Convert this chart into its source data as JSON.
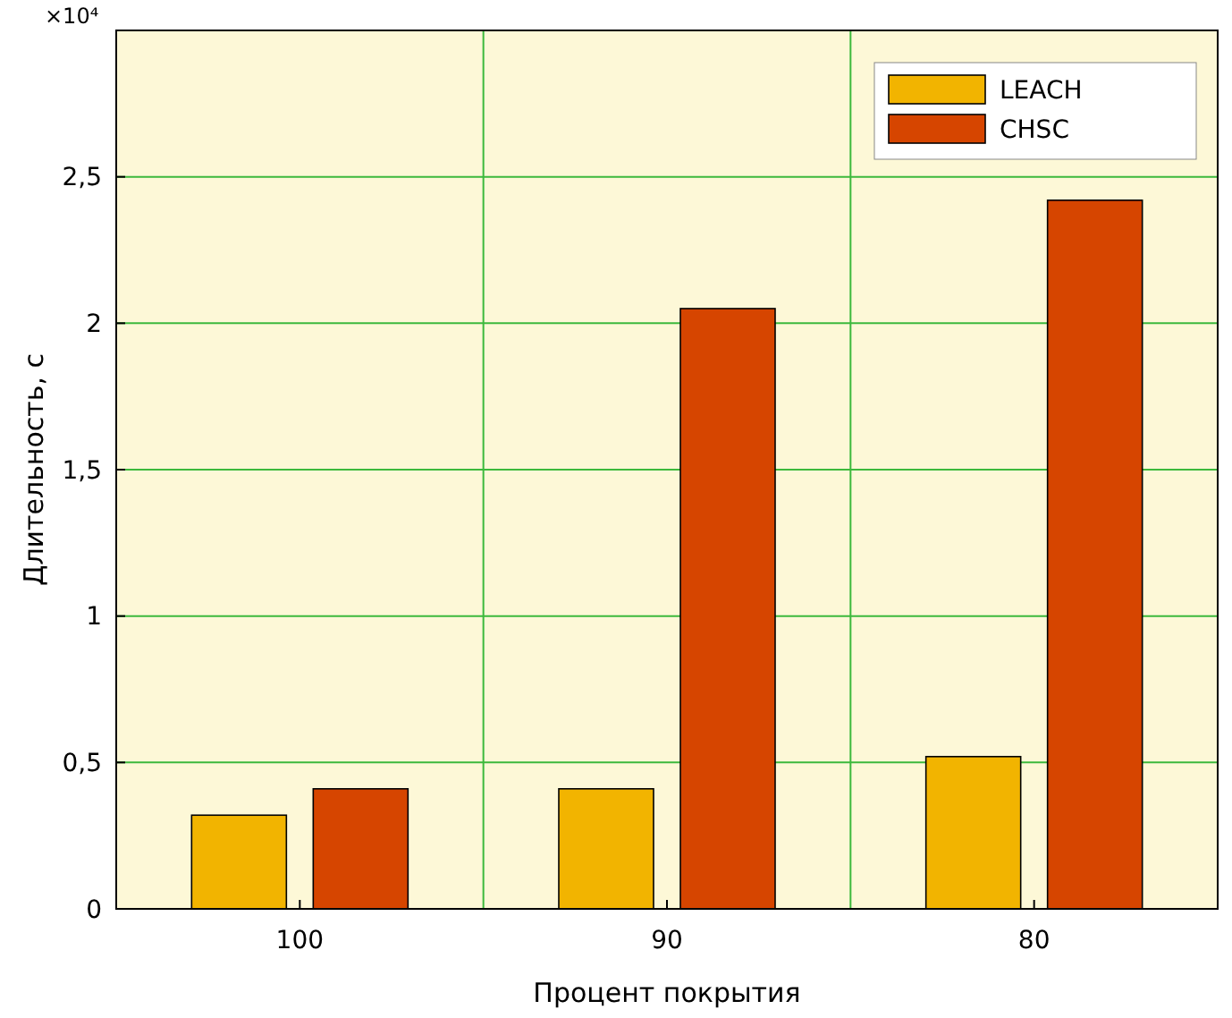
{
  "chart_data": {
    "type": "bar",
    "xlabel": "Процент покрытия",
    "ylabel": "Длительность, с",
    "categories": [
      "100",
      "90",
      "80"
    ],
    "series": [
      {
        "name": "LEACH",
        "color": "#f2b400",
        "values": [
          0.32,
          0.41,
          0.52
        ]
      },
      {
        "name": "CHSC",
        "color": "#d64500",
        "values": [
          0.41,
          2.05,
          2.42
        ]
      }
    ],
    "ylim": [
      0,
      3
    ],
    "yticks": [
      0,
      {
        "value": 0.5,
        "label": "0,5"
      },
      1,
      {
        "value": 1.5,
        "label": "1,5"
      },
      2,
      {
        "value": 2.5,
        "label": "2,5"
      },
      {
        "value": 3,
        "label": null
      }
    ],
    "annotations": [
      "×10⁴"
    ],
    "grid": true,
    "legend": "top right"
  }
}
